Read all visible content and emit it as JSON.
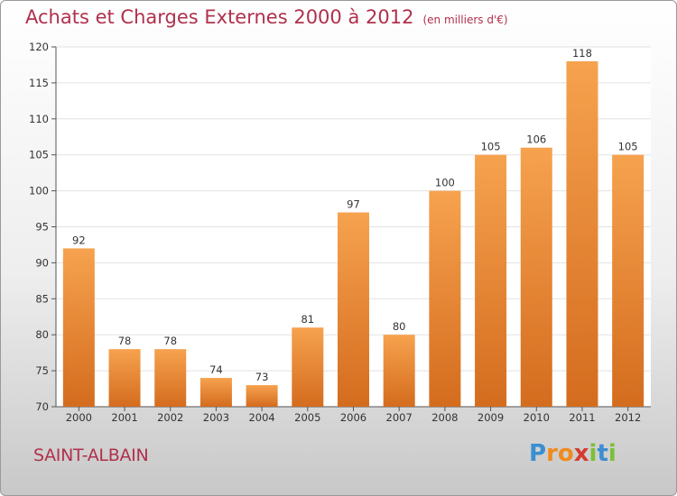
{
  "chart_data": {
    "type": "bar",
    "title": "Achats et Charges Externes 2000 à 2012",
    "subtitle": "(en milliers d'€)",
    "categories": [
      "2000",
      "2001",
      "2002",
      "2003",
      "2004",
      "2005",
      "2006",
      "2007",
      "2008",
      "2009",
      "2010",
      "2011",
      "2012"
    ],
    "values": [
      92,
      78,
      78,
      74,
      73,
      81,
      97,
      80,
      100,
      105,
      106,
      118,
      105
    ],
    "ylim": [
      70,
      120
    ],
    "yticks": [
      70,
      75,
      80,
      85,
      90,
      95,
      100,
      105,
      110,
      115,
      120
    ],
    "grid": true,
    "bar_color_top": "#f6a24e",
    "bar_color_bottom": "#d46c1e"
  },
  "footer": {
    "town": "SAINT-ALBAIN",
    "logo_letters": [
      "P",
      "r",
      "o",
      "x",
      "i",
      "t",
      "i"
    ],
    "logo_colors": [
      "#3a8fd0",
      "#f08a1e",
      "#f08a1e",
      "#d63a2e",
      "#7cbf3a",
      "#3a8fd0",
      "#7cbf3a"
    ]
  }
}
